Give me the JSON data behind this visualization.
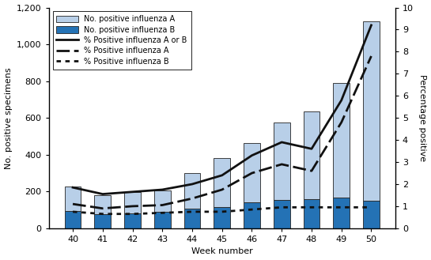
{
  "weeks": [
    40,
    41,
    42,
    43,
    44,
    45,
    46,
    47,
    48,
    49,
    50
  ],
  "flu_A": [
    130,
    105,
    115,
    115,
    195,
    265,
    325,
    420,
    475,
    625,
    975
  ],
  "flu_B": [
    95,
    75,
    80,
    90,
    105,
    115,
    140,
    155,
    160,
    165,
    150
  ],
  "pct_AorB": [
    1.85,
    1.55,
    1.65,
    1.75,
    2.0,
    2.4,
    3.3,
    3.9,
    3.6,
    5.8,
    9.2
  ],
  "pct_A": [
    1.1,
    0.9,
    1.0,
    1.05,
    1.35,
    1.75,
    2.5,
    2.9,
    2.6,
    4.8,
    7.8
  ],
  "pct_B": [
    0.75,
    0.65,
    0.65,
    0.7,
    0.75,
    0.75,
    0.85,
    0.95,
    0.95,
    0.95,
    0.95
  ],
  "color_A": "#b8cfe8",
  "color_B": "#2472b5",
  "bar_edge": "#222222",
  "line_color": "#111111",
  "ylim_left": [
    0,
    1200
  ],
  "ylim_right": [
    0,
    10
  ],
  "yticks_left": [
    0,
    200,
    400,
    600,
    800,
    1000,
    1200
  ],
  "yticks_right": [
    0,
    1,
    2,
    3,
    4,
    5,
    6,
    7,
    8,
    9,
    10
  ],
  "xlabel": "Week number",
  "ylabel_left": "No. positive specimens",
  "ylabel_right": "Percentage positive",
  "legend_A_label": "No. positive influenza A",
  "legend_B_label": "No. positive influenza B",
  "legend_AorB_label": "% Positive influenza A or B",
  "legend_pctA_label": "% Positive influenza A",
  "legend_pctB_label": "% Positive influenza B",
  "fig_width": 5.45,
  "fig_height": 3.29,
  "dpi": 100
}
